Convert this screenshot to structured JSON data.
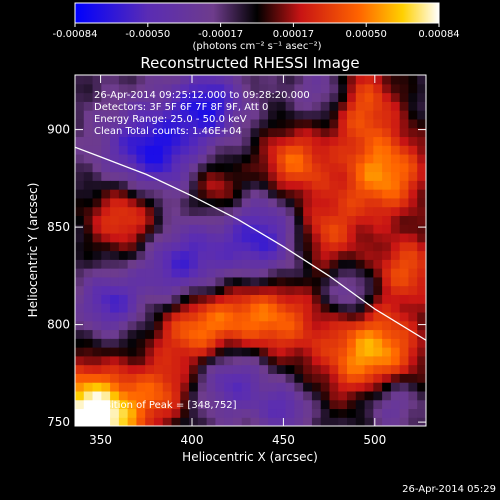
{
  "chart_data": {
    "type": "heatmap",
    "title": "Reconstructed RHESSI Image",
    "xlabel": "Heliocentric X (arcsec)",
    "ylabel": "Heliocentric Y (arcsec)",
    "xlim": [
      336,
      528
    ],
    "ylim": [
      748,
      928
    ],
    "x_ticks": [
      350,
      400,
      450,
      500
    ],
    "y_ticks": [
      750,
      800,
      850,
      900
    ],
    "colorbar": {
      "range": [
        -0.00084,
        0.00084
      ],
      "ticks": [
        "-0.00084",
        "-0.00050",
        "-0.00017",
        "0.00017",
        "0.00050",
        "0.00084"
      ],
      "unit_label": "(photons cm⁻² s⁻¹ asec⁻²)",
      "colors": [
        "#0000ff",
        "#5a2cb4",
        "#6e3c8c",
        "#000000",
        "#c81414",
        "#ff6400",
        "#ffd000",
        "#ffffff"
      ]
    },
    "info_lines": [
      "26-Apr-2014 09:25:12.000 to 09:28:20.000",
      "Detectors: 3F 5F 6F 7F 8F 9F, Att 0",
      "Energy Range: 25.0 - 50.0 keV",
      "Clean      Total counts: 1.46E+04"
    ],
    "peak_text": "Position of Peak = [348,752]",
    "peak": [
      348,
      752
    ],
    "limb": [
      [
        336,
        891
      ],
      [
        350,
        886
      ],
      [
        375,
        877
      ],
      [
        400,
        866
      ],
      [
        425,
        854
      ],
      [
        450,
        840
      ],
      [
        475,
        825
      ],
      [
        500,
        808
      ],
      [
        528,
        792
      ]
    ],
    "timestamp": "26-Apr-2014 05:29"
  }
}
